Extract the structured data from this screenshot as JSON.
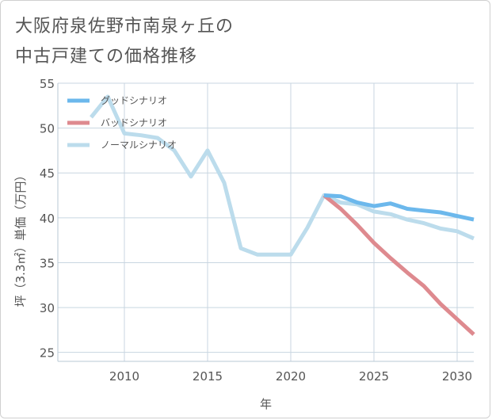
{
  "title_line1": "大阪府泉佐野市南泉ヶ丘の",
  "title_line2": "中古戸建ての価格推移",
  "chart_data": {
    "type": "line",
    "xlabel": "年",
    "ylabel": "坪（3.3㎡）単価（万円）",
    "xlim": [
      2006,
      2031
    ],
    "ylim": [
      24,
      55
    ],
    "x_ticks": [
      2010,
      2015,
      2020,
      2025,
      2030
    ],
    "y_ticks": [
      25,
      30,
      35,
      40,
      45,
      50,
      55
    ],
    "legend_position": "top-left",
    "series": [
      {
        "name": "グッドシナリオ",
        "color": "#6cb8ec",
        "x": [
          2022,
          2023,
          2024,
          2025,
          2026,
          2027,
          2028,
          2029,
          2030,
          2031
        ],
        "values": [
          42.5,
          42.4,
          41.7,
          41.3,
          41.6,
          41.0,
          40.8,
          40.6,
          40.2,
          39.8
        ]
      },
      {
        "name": "バッドシナリオ",
        "color": "#de8a8f",
        "x": [
          2022,
          2023,
          2024,
          2025,
          2026,
          2027,
          2028,
          2029,
          2030,
          2031
        ],
        "values": [
          42.5,
          41.0,
          39.2,
          37.2,
          35.5,
          33.9,
          32.4,
          30.4,
          28.7,
          27.0
        ]
      },
      {
        "name": "ノーマルシナリオ",
        "color": "#bcdcec",
        "x": [
          2008,
          2009,
          2010,
          2011,
          2012,
          2013,
          2014,
          2015,
          2016,
          2017,
          2018,
          2019,
          2020,
          2021,
          2022,
          2023,
          2024,
          2025,
          2026,
          2027,
          2028,
          2029,
          2030,
          2031
        ],
        "values": [
          51.2,
          53.5,
          49.4,
          49.2,
          48.9,
          47.5,
          44.6,
          47.5,
          43.9,
          36.6,
          35.9,
          35.9,
          35.9,
          38.9,
          42.5,
          41.7,
          41.5,
          40.7,
          40.4,
          39.8,
          39.4,
          38.8,
          38.5,
          37.7
        ]
      }
    ]
  }
}
